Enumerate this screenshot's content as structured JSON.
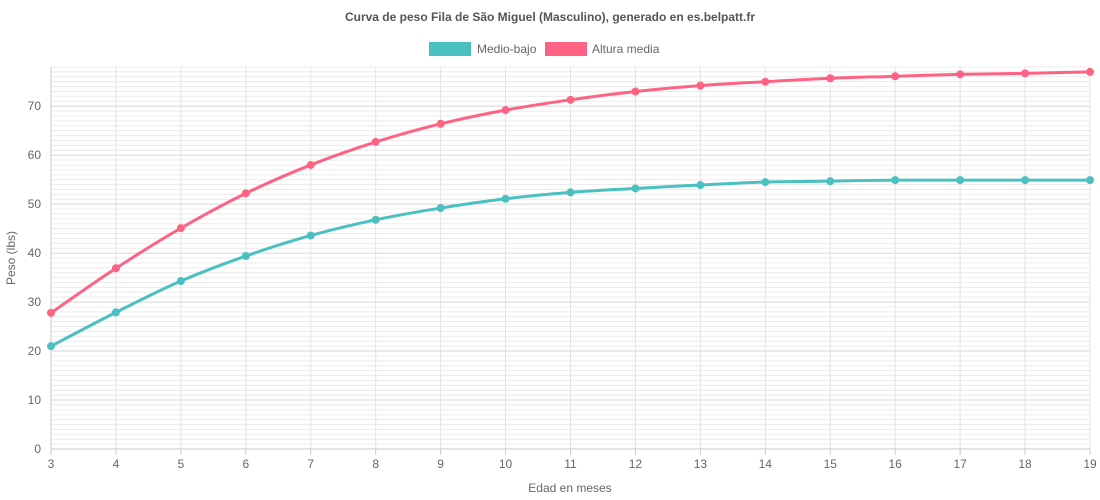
{
  "chart_data": {
    "type": "line",
    "title": "Curva de peso Fila de São Miguel (Masculino), generado en es.belpatt.fr",
    "xlabel": "Edad en meses",
    "ylabel": "Peso (lbs)",
    "x": [
      3,
      4,
      5,
      6,
      7,
      8,
      9,
      10,
      11,
      12,
      13,
      14,
      15,
      16,
      17,
      18,
      19
    ],
    "xlim": [
      3,
      19
    ],
    "ylim": [
      0,
      78
    ],
    "yticks": [
      0,
      10,
      20,
      30,
      40,
      50,
      60,
      70
    ],
    "grid": true,
    "legend_position": "top",
    "series": [
      {
        "name": "Medio-bajo",
        "color": "#4bc0c0",
        "values": [
          21.0,
          27.9,
          34.3,
          39.4,
          43.6,
          46.8,
          49.2,
          51.1,
          52.4,
          53.2,
          53.9,
          54.5,
          54.7,
          54.9,
          54.9,
          54.9,
          54.9
        ]
      },
      {
        "name": "Altura media",
        "color": "#ff6384",
        "values": [
          27.8,
          36.9,
          45.1,
          52.2,
          58.0,
          62.7,
          66.4,
          69.2,
          71.3,
          73.0,
          74.2,
          75.0,
          75.7,
          76.1,
          76.5,
          76.7,
          77.0
        ]
      }
    ]
  }
}
